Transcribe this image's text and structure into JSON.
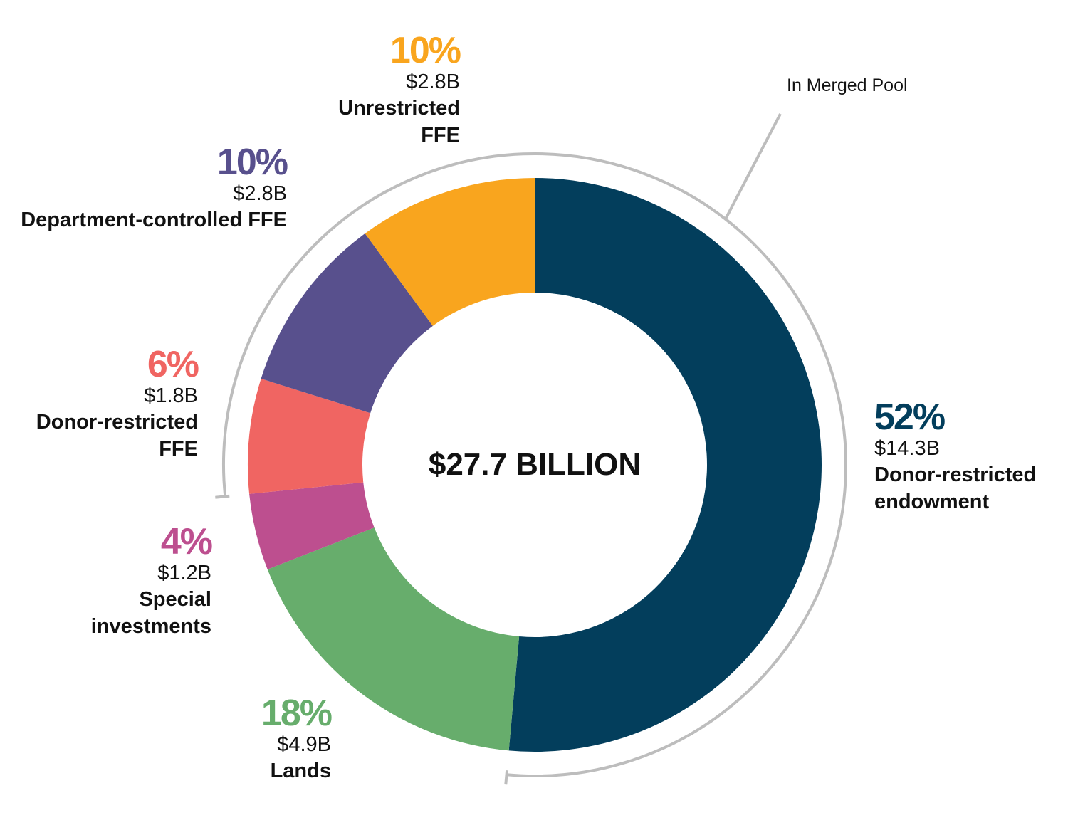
{
  "chart_data": {
    "type": "pie",
    "style": "donut",
    "center_label": "$27.7 BILLION",
    "bracket_label": "In Merged Pool",
    "bracket_covers": [
      "Unrestricted FFE",
      "Department-controlled FFE",
      "Donor-restricted FFE",
      "Donor-restricted endowment"
    ],
    "slices": [
      {
        "name": "Donor-restricted endowment",
        "percent_label": "52%",
        "amount_label": "$14.3B",
        "value": 14.3,
        "color": "#033e5c"
      },
      {
        "name": "Lands",
        "percent_label": "18%",
        "amount_label": "$4.9B",
        "value": 4.9,
        "color": "#67ad6c"
      },
      {
        "name": "Special investments",
        "percent_label": "4%",
        "amount_label": "$1.2B",
        "value": 1.2,
        "color": "#bd4f8f"
      },
      {
        "name": "Donor-restricted FFE",
        "percent_label": "6%",
        "amount_label": "$1.8B",
        "value": 1.8,
        "color": "#f06562"
      },
      {
        "name": "Department-controlled FFE",
        "percent_label": "10%",
        "amount_label": "$2.8B",
        "value": 2.8,
        "color": "#58508d"
      },
      {
        "name": "Unrestricted FFE",
        "percent_label": "10%",
        "amount_label": "$2.8B",
        "value": 2.8,
        "color": "#f9a51e"
      }
    ]
  }
}
